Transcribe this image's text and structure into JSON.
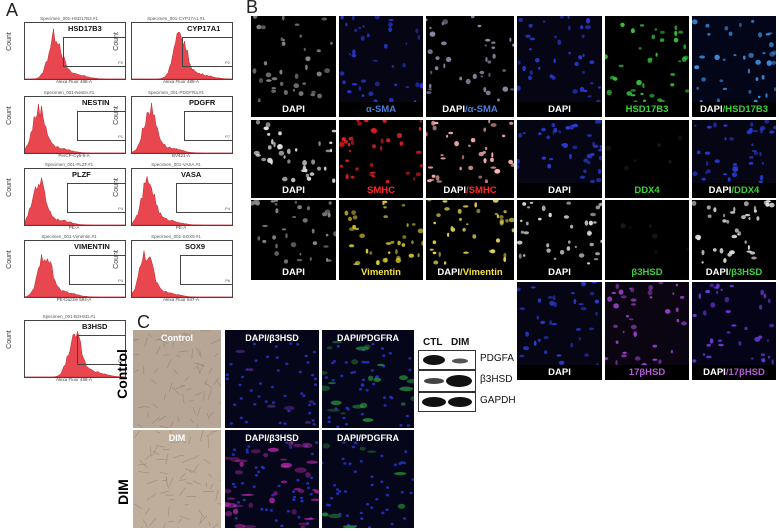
{
  "panels": {
    "a": "A",
    "b": "B",
    "c": "C"
  },
  "flow": {
    "y_label": "Count",
    "plots": [
      {
        "header": "Specimen_001-HSD17B3.#1",
        "marker": "HSD17B3",
        "xlabel": "Alexa Fluor 488-A",
        "gate": "P2"
      },
      {
        "header": "Specimen_001-CYP17A1.#1",
        "marker": "CYP17A1",
        "xlabel": "Alexa Fluor 488-A",
        "gate": "P2"
      },
      {
        "header": "Specimen_001-Nestin.#1",
        "marker": "NESTIN",
        "xlabel": "PerCP-Cy5-5-A",
        "gate": "P1"
      },
      {
        "header": "Specimen_001-PDGFRa.#1",
        "marker": "PDGFR",
        "xlabel": "BV421-A",
        "gate": "P7"
      },
      {
        "header": "Specimen_001-PLZF.#1",
        "marker": "PLZF",
        "xlabel": "PE-A",
        "gate": "P4"
      },
      {
        "header": "Specimen_001-VASA.#1",
        "marker": "VASA",
        "xlabel": "PE-A",
        "gate": "P4"
      },
      {
        "header": "Specimen_001-Vimentin.#1",
        "marker": "VIMENTIN",
        "xlabel": "PE-Dazzle 594-A",
        "gate": "P4"
      },
      {
        "header": "Specimen_001-SOX9.#1",
        "marker": "SOX9",
        "xlabel": "Alexa Fluor 647-A",
        "gate": "P6"
      },
      {
        "header": "Specimen_001-B3HSD.#1",
        "marker": "B3HSD",
        "xlabel": "Alexa Fluor 488-A",
        "gate": "P2"
      }
    ]
  },
  "b_tiles": {
    "r1": [
      {
        "a": "DAPI"
      },
      {
        "a": "α-SMA"
      },
      {
        "a": "DAPI",
        "sep": "/",
        "b": "α-SMA"
      },
      {
        "a": "DAPI"
      },
      {
        "a": "HSD17B3"
      },
      {
        "a": "DAPI",
        "sep": "/",
        "b": "HSD17B3"
      }
    ],
    "r2": [
      {
        "a": "DAPI"
      },
      {
        "a": "SMHC"
      },
      {
        "a": "DAPI",
        "sep": "/",
        "b": "SMHC"
      },
      {
        "a": "DAPI"
      },
      {
        "a": "DDX4"
      },
      {
        "a": "DAPI",
        "sep": "/",
        "b": "DDX4"
      }
    ],
    "r3": [
      {
        "a": "DAPI"
      },
      {
        "a": "Vimentin"
      },
      {
        "a": "DAPI",
        "sep": "/",
        "b": "Vimentin"
      },
      {
        "a": "DAPI"
      },
      {
        "a": "β3HSD"
      },
      {
        "a": "DAPI",
        "sep": "/",
        "b": "β3HSD"
      }
    ],
    "r4": [
      {
        "a": "DAPI"
      },
      {
        "a": "17βHSD"
      },
      {
        "a": "DAPI",
        "sep": "/",
        "b": "17βHSD"
      }
    ]
  },
  "colors": {
    "dapi_blue": "#1f2fa8",
    "green": "#39d23c",
    "red": "#ff2a2a",
    "yellow": "#f5e13a",
    "purple": "#b45ad8",
    "light_blue": "#4a7fe0",
    "histogram": "#e8474f"
  },
  "c_panel": {
    "rows": [
      "Control",
      "DIM"
    ],
    "brightfield": [
      "Control",
      "DIM"
    ],
    "stains": {
      "col1": "DAPI/β3HSD",
      "col2": "DAPI/PDGFRA"
    },
    "western": {
      "lanes": [
        "CTL",
        "DIM"
      ],
      "proteins": [
        "PDGFA",
        "β3HSD",
        "GAPDH"
      ]
    }
  }
}
